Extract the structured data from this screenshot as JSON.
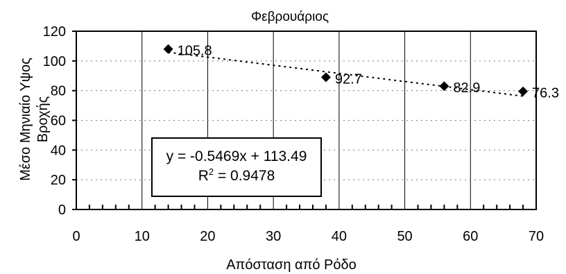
{
  "chart_data": {
    "type": "scatter",
    "title": "Φεβρουάριος",
    "xlabel": "Απόσταση από Ρόδο",
    "ylabel_lines": [
      "Μέσο Μηνιαίο Υψος",
      "Βροχής"
    ],
    "xlim": [
      0,
      70
    ],
    "ylim": [
      0,
      120
    ],
    "xticks": [
      0,
      10,
      20,
      30,
      40,
      50,
      60,
      70
    ],
    "yticks": [
      0,
      20,
      40,
      60,
      80,
      100,
      120
    ],
    "grid": {
      "vertical": "solid",
      "horizontal": "dashed"
    },
    "series": [
      {
        "points": [
          {
            "x": 14,
            "y": 108,
            "label": "105.8"
          },
          {
            "x": 38,
            "y": 89,
            "label": "92.7"
          },
          {
            "x": 56,
            "y": 83,
            "label": "82.9"
          },
          {
            "x": 68,
            "y": 79.5,
            "label": "76.3"
          }
        ],
        "marker": "diamond",
        "color": "#000000"
      }
    ],
    "trendline": {
      "type": "linear",
      "slope": -0.5469,
      "intercept": 113.49,
      "x_range": [
        14,
        68
      ],
      "style": "dotted",
      "equation": "y = -0.5469x + 113.49",
      "r2_prefix": "R",
      "r2_sup": "2",
      "r2_value": " = 0.9478"
    }
  }
}
